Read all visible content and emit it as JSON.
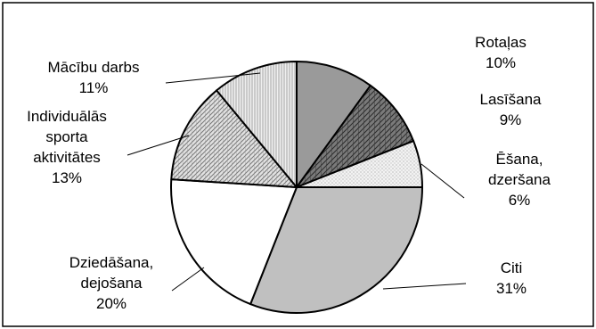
{
  "chart_data": {
    "type": "pie",
    "slices": [
      {
        "label": "Rotaļas",
        "value": 10,
        "value_text": "10%",
        "fill": "#9a9a9a",
        "pattern": "solid"
      },
      {
        "label": "Lasīšana",
        "value": 9,
        "value_text": "9%",
        "fill": "#7a7a7a",
        "pattern": "crosshatch"
      },
      {
        "label": "Ēšana, dzeršana",
        "value": 6,
        "value_text": "6%",
        "fill": "#f4f4f4",
        "pattern": "dots"
      },
      {
        "label": "Citi",
        "value": 31,
        "value_text": "31%",
        "fill": "#c0c0c0",
        "pattern": "solid"
      },
      {
        "label": "Dziedāšana, dejošana",
        "value": 20,
        "value_text": "20%",
        "fill": "#ffffff",
        "pattern": "none"
      },
      {
        "label": "Individuālās sporta aktivitātes",
        "value": 13,
        "value_text": "13%",
        "fill": "#d8d8d8",
        "pattern": "diagonal"
      },
      {
        "label": "Mācību darbs",
        "value": 11,
        "value_text": "11%",
        "fill": "#ebebeb",
        "pattern": "vertical"
      }
    ],
    "label_lines": [
      [
        "Rotaļas",
        "10%"
      ],
      [
        "Lasīšana",
        "9%"
      ],
      [
        "Ēšana,",
        "dzeršana",
        "6%"
      ],
      [
        "Citi",
        "31%"
      ],
      [
        "Dziedāšana,",
        "dejošana",
        "20%"
      ],
      [
        "Individuālās",
        "sporta",
        "aktivitātes",
        "13%"
      ],
      [
        "Mācību darbs",
        "11%"
      ]
    ],
    "start_angle_deg": 90,
    "direction": "clockwise",
    "legend": "none"
  }
}
